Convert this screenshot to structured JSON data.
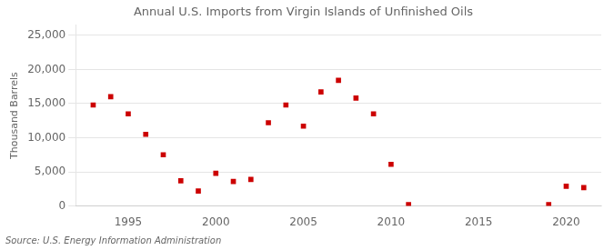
{
  "chart_data": {
    "type": "scatter",
    "title": "Annual U.S. Imports from Virgin Islands of Unfinished Oils",
    "ylabel": "Thousand Barrels",
    "annotation": "Source: U.S. Energy Information Administration",
    "x": [
      1993,
      1994,
      1995,
      1996,
      1997,
      1998,
      1999,
      2000,
      2001,
      2002,
      2003,
      2004,
      2005,
      2006,
      2007,
      2008,
      2009,
      2010,
      2011,
      2019,
      2020,
      2021
    ],
    "values": [
      14800,
      16000,
      13500,
      10500,
      7500,
      3700,
      2200,
      4800,
      3600,
      3900,
      12200,
      14800,
      11700,
      16700,
      18400,
      15800,
      13500,
      6100,
      200,
      200,
      2900,
      2700
    ],
    "color": "#cc0000",
    "marker": "square",
    "xlim": [
      1992,
      2022
    ],
    "xticks": [
      1995,
      2000,
      2005,
      2010,
      2015,
      2020
    ],
    "ylim": [
      0,
      26500
    ],
    "yticks": [
      0,
      {
        "value": 5000,
        "label": "5,000"
      },
      {
        "value": 10000,
        "label": "10,000"
      },
      {
        "value": 15000,
        "label": "15,000"
      },
      {
        "value": 20000,
        "label": "20,000"
      },
      {
        "value": 25000,
        "label": "25,000"
      }
    ],
    "grid": "y"
  }
}
